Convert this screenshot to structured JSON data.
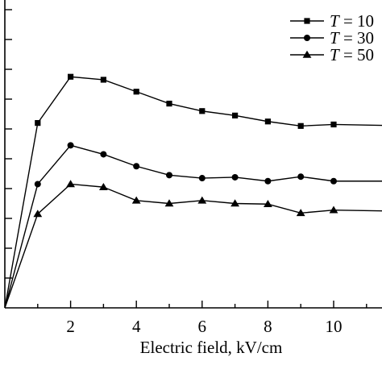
{
  "chart_data": {
    "type": "line",
    "xlabel": "Electric field, kV/cm",
    "ylabel": "",
    "xlim": [
      0,
      11.5
    ],
    "ylim": [
      0,
      10
    ],
    "x_ticks": [
      2,
      4,
      6,
      8,
      10
    ],
    "x_tick_labels": [
      "2",
      "4",
      "6",
      "8",
      "10"
    ],
    "legend_position": "top-right",
    "series": [
      {
        "name": "T = 10",
        "marker": "square",
        "x": [
          0,
          1,
          2,
          3,
          4,
          5,
          6,
          7,
          8,
          9,
          10,
          11.5
        ],
        "y": [
          0,
          6.2,
          7.75,
          7.65,
          7.25,
          6.85,
          6.6,
          6.45,
          6.25,
          6.1,
          6.15,
          6.12
        ]
      },
      {
        "name": "T = 30",
        "marker": "circle",
        "x": [
          0,
          1,
          2,
          3,
          4,
          5,
          6,
          7,
          8,
          9,
          10,
          11.5
        ],
        "y": [
          0,
          4.15,
          5.45,
          5.15,
          4.75,
          4.45,
          4.35,
          4.38,
          4.25,
          4.4,
          4.25,
          4.25
        ]
      },
      {
        "name": "T = 50",
        "marker": "triangle",
        "x": [
          0,
          1,
          2,
          3,
          4,
          5,
          6,
          7,
          8,
          9,
          10,
          11.5
        ],
        "y": [
          0,
          3.15,
          4.15,
          4.05,
          3.6,
          3.5,
          3.6,
          3.5,
          3.48,
          3.18,
          3.28,
          3.25
        ]
      }
    ]
  }
}
